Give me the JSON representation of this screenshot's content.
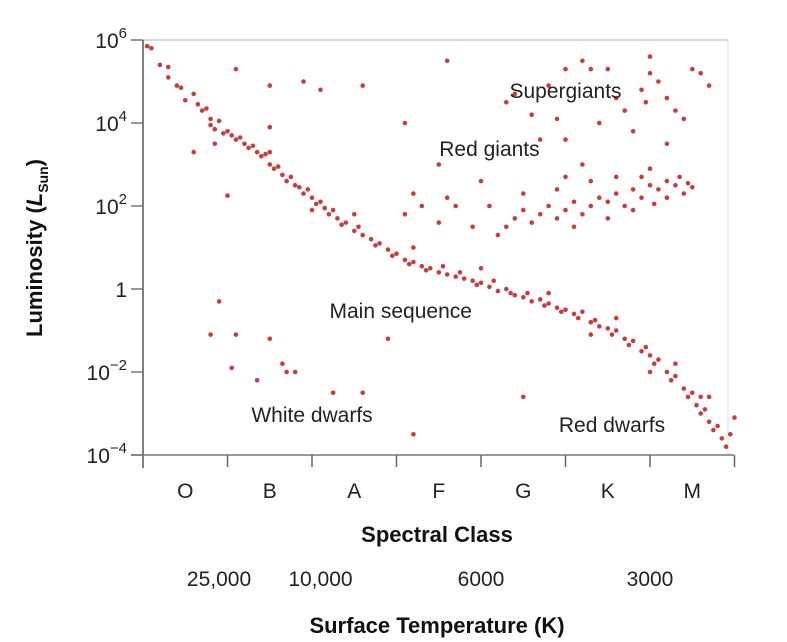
{
  "chart_data": {
    "type": "scatter",
    "title": "",
    "xlabel": "Spectral Class",
    "xlabel2": "Surface Temperature (K)",
    "ylabel_prefix": "Luminosity (",
    "ylabel_symbol": "L",
    "ylabel_sub": "Sun",
    "ylabel_suffix": ")",
    "y_scale": "log10",
    "ylim_log10": [
      -4,
      6
    ],
    "xlim": [
      0,
      7
    ],
    "y_ticks": [
      {
        "base": "10",
        "exp": "6",
        "value": 6
      },
      {
        "base": "10",
        "exp": "4",
        "value": 4
      },
      {
        "base": "10",
        "exp": "2",
        "value": 2
      },
      {
        "base": "1",
        "exp": "",
        "value": 0
      },
      {
        "base": "10",
        "exp": "−2",
        "value": -2
      },
      {
        "base": "10",
        "exp": "−4",
        "value": -4
      }
    ],
    "x_categories": [
      "O",
      "B",
      "A",
      "F",
      "G",
      "K",
      "M"
    ],
    "temperature_ticks": [
      {
        "label": "25,000",
        "x": 0.9
      },
      {
        "label": "10,000",
        "x": 2.1
      },
      {
        "label": "6000",
        "x": 4.0
      },
      {
        "label": "3000",
        "x": 6.0
      }
    ],
    "annotations": [
      {
        "text": "Supergiants",
        "x": 5.0,
        "y": 4.6
      },
      {
        "text": "Red giants",
        "x": 4.1,
        "y": 3.2
      },
      {
        "text": "Main sequence",
        "x": 3.05,
        "y": -0.7
      },
      {
        "text": "White dwarfs",
        "x": 2.0,
        "y": -3.2
      },
      {
        "text": "Red dwarfs",
        "x": 5.55,
        "y": -3.45
      }
    ],
    "point_color": "#cc3b3b",
    "series": [
      {
        "name": "Main sequence",
        "points": [
          [
            0.05,
            5.85
          ],
          [
            0.1,
            5.8
          ],
          [
            0.2,
            5.4
          ],
          [
            0.3,
            5.35
          ],
          [
            0.3,
            5.1
          ],
          [
            0.4,
            4.9
          ],
          [
            0.45,
            4.85
          ],
          [
            0.5,
            4.55
          ],
          [
            0.6,
            4.7
          ],
          [
            0.65,
            4.45
          ],
          [
            0.7,
            4.3
          ],
          [
            0.75,
            4.35
          ],
          [
            0.8,
            4.1
          ],
          [
            0.8,
            3.95
          ],
          [
            0.85,
            3.85
          ],
          [
            0.9,
            4.05
          ],
          [
            0.95,
            3.75
          ],
          [
            1.0,
            3.8
          ],
          [
            1.05,
            3.7
          ],
          [
            1.1,
            3.6
          ],
          [
            1.15,
            3.65
          ],
          [
            1.2,
            3.5
          ],
          [
            1.25,
            3.4
          ],
          [
            1.3,
            3.45
          ],
          [
            1.35,
            3.3
          ],
          [
            1.4,
            3.2
          ],
          [
            1.45,
            3.25
          ],
          [
            1.5,
            3.0
          ],
          [
            1.55,
            2.9
          ],
          [
            1.6,
            2.95
          ],
          [
            1.65,
            2.75
          ],
          [
            1.7,
            2.6
          ],
          [
            1.75,
            2.7
          ],
          [
            1.8,
            2.5
          ],
          [
            1.85,
            2.45
          ],
          [
            1.9,
            2.3
          ],
          [
            1.95,
            2.4
          ],
          [
            2.0,
            2.2
          ],
          [
            2.05,
            2.05
          ],
          [
            2.1,
            2.1
          ],
          [
            2.15,
            1.95
          ],
          [
            2.2,
            1.8
          ],
          [
            2.25,
            1.9
          ],
          [
            2.3,
            1.7
          ],
          [
            2.35,
            1.55
          ],
          [
            2.4,
            1.6
          ],
          [
            2.5,
            1.4
          ],
          [
            2.55,
            1.5
          ],
          [
            2.6,
            1.3
          ],
          [
            2.7,
            1.2
          ],
          [
            2.75,
            1.05
          ],
          [
            2.8,
            1.1
          ],
          [
            2.9,
            0.95
          ],
          [
            2.95,
            0.8
          ],
          [
            3.0,
            0.85
          ],
          [
            3.1,
            0.7
          ],
          [
            3.15,
            0.6
          ],
          [
            3.2,
            0.65
          ],
          [
            3.3,
            0.55
          ],
          [
            3.35,
            0.45
          ],
          [
            3.4,
            0.5
          ],
          [
            3.5,
            0.4
          ],
          [
            3.55,
            0.55
          ],
          [
            3.6,
            0.35
          ],
          [
            3.7,
            0.3
          ],
          [
            3.75,
            0.4
          ],
          [
            3.8,
            0.25
          ],
          [
            3.9,
            0.2
          ],
          [
            3.95,
            0.1
          ],
          [
            4.0,
            0.15
          ],
          [
            4.1,
            0.05
          ],
          [
            4.15,
            0.2
          ],
          [
            4.2,
            -0.05
          ],
          [
            4.3,
            0.0
          ],
          [
            4.35,
            -0.1
          ],
          [
            4.4,
            -0.15
          ],
          [
            4.5,
            -0.2
          ],
          [
            4.55,
            -0.1
          ],
          [
            4.6,
            -0.3
          ],
          [
            4.7,
            -0.25
          ],
          [
            4.75,
            -0.4
          ],
          [
            4.8,
            -0.35
          ],
          [
            4.9,
            -0.45
          ],
          [
            4.95,
            -0.55
          ],
          [
            5.0,
            -0.5
          ],
          [
            5.1,
            -0.6
          ],
          [
            5.15,
            -0.7
          ],
          [
            5.2,
            -0.55
          ],
          [
            5.3,
            -0.8
          ],
          [
            5.35,
            -0.75
          ],
          [
            5.4,
            -0.9
          ],
          [
            5.5,
            -0.95
          ],
          [
            5.55,
            -1.1
          ],
          [
            5.6,
            -1.0
          ],
          [
            5.7,
            -1.2
          ],
          [
            5.75,
            -1.35
          ],
          [
            5.8,
            -1.25
          ],
          [
            5.9,
            -1.5
          ],
          [
            5.95,
            -1.4
          ],
          [
            6.0,
            -1.6
          ],
          [
            6.05,
            -1.8
          ],
          [
            6.1,
            -1.7
          ],
          [
            6.2,
            -2.0
          ],
          [
            6.25,
            -2.2
          ],
          [
            6.3,
            -2.1
          ],
          [
            6.4,
            -2.4
          ],
          [
            6.45,
            -2.6
          ],
          [
            6.5,
            -2.5
          ],
          [
            6.55,
            -2.8
          ],
          [
            6.6,
            -3.0
          ],
          [
            6.65,
            -2.9
          ],
          [
            6.7,
            -3.2
          ],
          [
            6.75,
            -3.4
          ],
          [
            6.8,
            -3.3
          ],
          [
            6.85,
            -3.6
          ],
          [
            6.9,
            -3.8
          ],
          [
            6.95,
            -3.5
          ],
          [
            6.6,
            -2.6
          ],
          [
            6.3,
            -1.8
          ],
          [
            5.6,
            -0.7
          ],
          [
            4.0,
            0.5
          ],
          [
            3.2,
            1.0
          ],
          [
            2.5,
            1.8
          ],
          [
            2.0,
            1.9
          ],
          [
            1.5,
            3.3
          ],
          [
            4.8,
            -0.1
          ],
          [
            5.3,
            -1.1
          ],
          [
            6.0,
            -2.0
          ],
          [
            6.7,
            -2.6
          ],
          [
            7.0,
            -3.1
          ]
        ]
      },
      {
        "name": "Red giants",
        "points": [
          [
            4.3,
            1.5
          ],
          [
            4.4,
            1.7
          ],
          [
            4.5,
            1.9
          ],
          [
            4.6,
            1.6
          ],
          [
            4.7,
            1.8
          ],
          [
            4.8,
            2.0
          ],
          [
            4.9,
            1.7
          ],
          [
            5.0,
            1.9
          ],
          [
            5.1,
            2.1
          ],
          [
            5.2,
            1.8
          ],
          [
            5.3,
            2.0
          ],
          [
            5.4,
            2.2
          ],
          [
            5.5,
            2.1
          ],
          [
            5.6,
            2.3
          ],
          [
            5.7,
            2.0
          ],
          [
            5.8,
            2.4
          ],
          [
            5.9,
            2.2
          ],
          [
            6.0,
            2.5
          ],
          [
            6.1,
            2.4
          ],
          [
            6.2,
            2.6
          ],
          [
            6.3,
            2.5
          ],
          [
            6.4,
            2.3
          ],
          [
            6.5,
            2.45
          ],
          [
            4.2,
            1.3
          ],
          [
            4.5,
            2.3
          ],
          [
            4.9,
            2.4
          ],
          [
            5.3,
            2.6
          ],
          [
            5.6,
            2.7
          ],
          [
            6.0,
            2.9
          ],
          [
            6.2,
            2.2
          ],
          [
            5.1,
            1.5
          ],
          [
            5.5,
            1.7
          ],
          [
            5.8,
            1.9
          ],
          [
            6.05,
            2.05
          ],
          [
            6.35,
            2.7
          ],
          [
            6.45,
            2.55
          ],
          [
            3.3,
            2.0
          ],
          [
            3.5,
            1.6
          ],
          [
            3.6,
            2.2
          ],
          [
            3.9,
            1.5
          ],
          [
            4.1,
            2.0
          ],
          [
            3.1,
            1.8
          ],
          [
            4.0,
            2.6
          ],
          [
            5.0,
            2.7
          ],
          [
            5.2,
            3.0
          ],
          [
            5.9,
            2.7
          ],
          [
            3.2,
            2.3
          ],
          [
            3.7,
            2.0
          ]
        ]
      },
      {
        "name": "Supergiants",
        "points": [
          [
            1.1,
            5.3
          ],
          [
            1.5,
            4.9
          ],
          [
            1.9,
            5.0
          ],
          [
            2.1,
            4.8
          ],
          [
            2.6,
            4.9
          ],
          [
            3.1,
            4.0
          ],
          [
            3.6,
            5.5
          ],
          [
            4.3,
            4.5
          ],
          [
            4.4,
            4.7
          ],
          [
            4.6,
            4.2
          ],
          [
            4.8,
            4.9
          ],
          [
            4.9,
            4.1
          ],
          [
            5.0,
            5.3
          ],
          [
            5.2,
            5.5
          ],
          [
            5.3,
            5.3
          ],
          [
            5.5,
            5.3
          ],
          [
            5.6,
            4.6
          ],
          [
            5.7,
            4.3
          ],
          [
            5.9,
            4.8
          ],
          [
            6.0,
            5.2
          ],
          [
            6.1,
            5.0
          ],
          [
            6.2,
            4.6
          ],
          [
            6.3,
            4.3
          ],
          [
            6.0,
            5.6
          ],
          [
            6.5,
            5.3
          ],
          [
            6.6,
            5.2
          ],
          [
            6.7,
            4.9
          ],
          [
            6.4,
            4.1
          ],
          [
            5.8,
            3.8
          ],
          [
            5.0,
            3.6
          ],
          [
            5.4,
            4.0
          ],
          [
            4.7,
            3.6
          ],
          [
            3.5,
            3.0
          ],
          [
            6.2,
            3.5
          ],
          [
            5.95,
            4.5
          ],
          [
            0.85,
            3.5
          ],
          [
            1.5,
            3.9
          ],
          [
            0.6,
            3.3
          ],
          [
            1.0,
            2.25
          ]
        ]
      },
      {
        "name": "White dwarfs",
        "points": [
          [
            0.9,
            -0.3
          ],
          [
            0.8,
            -1.1
          ],
          [
            1.1,
            -1.1
          ],
          [
            1.5,
            -1.2
          ],
          [
            1.05,
            -1.9
          ],
          [
            1.35,
            -2.2
          ],
          [
            1.65,
            -1.8
          ],
          [
            1.7,
            -2.0
          ],
          [
            1.8,
            -2.0
          ],
          [
            2.25,
            -2.5
          ],
          [
            2.6,
            -2.5
          ],
          [
            3.2,
            -3.5
          ],
          [
            4.5,
            -2.6
          ],
          [
            2.9,
            -1.2
          ]
        ]
      }
    ]
  }
}
